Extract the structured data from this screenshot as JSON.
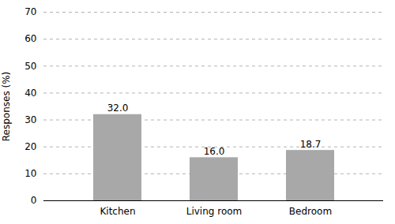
{
  "chart_data": {
    "type": "bar",
    "categories": [
      "Kitchen",
      "Living room",
      "Bedroom"
    ],
    "values": [
      32.0,
      16.0,
      18.7
    ],
    "value_labels": [
      "32.0",
      "16.0",
      "18.7"
    ],
    "color": "#a8a8a8",
    "ylabel": "Responses (%)",
    "ylim": [
      0,
      70
    ],
    "yticks": [
      0,
      10,
      20,
      30,
      40,
      50,
      60,
      70
    ],
    "grid": true,
    "data_labels": true
  }
}
